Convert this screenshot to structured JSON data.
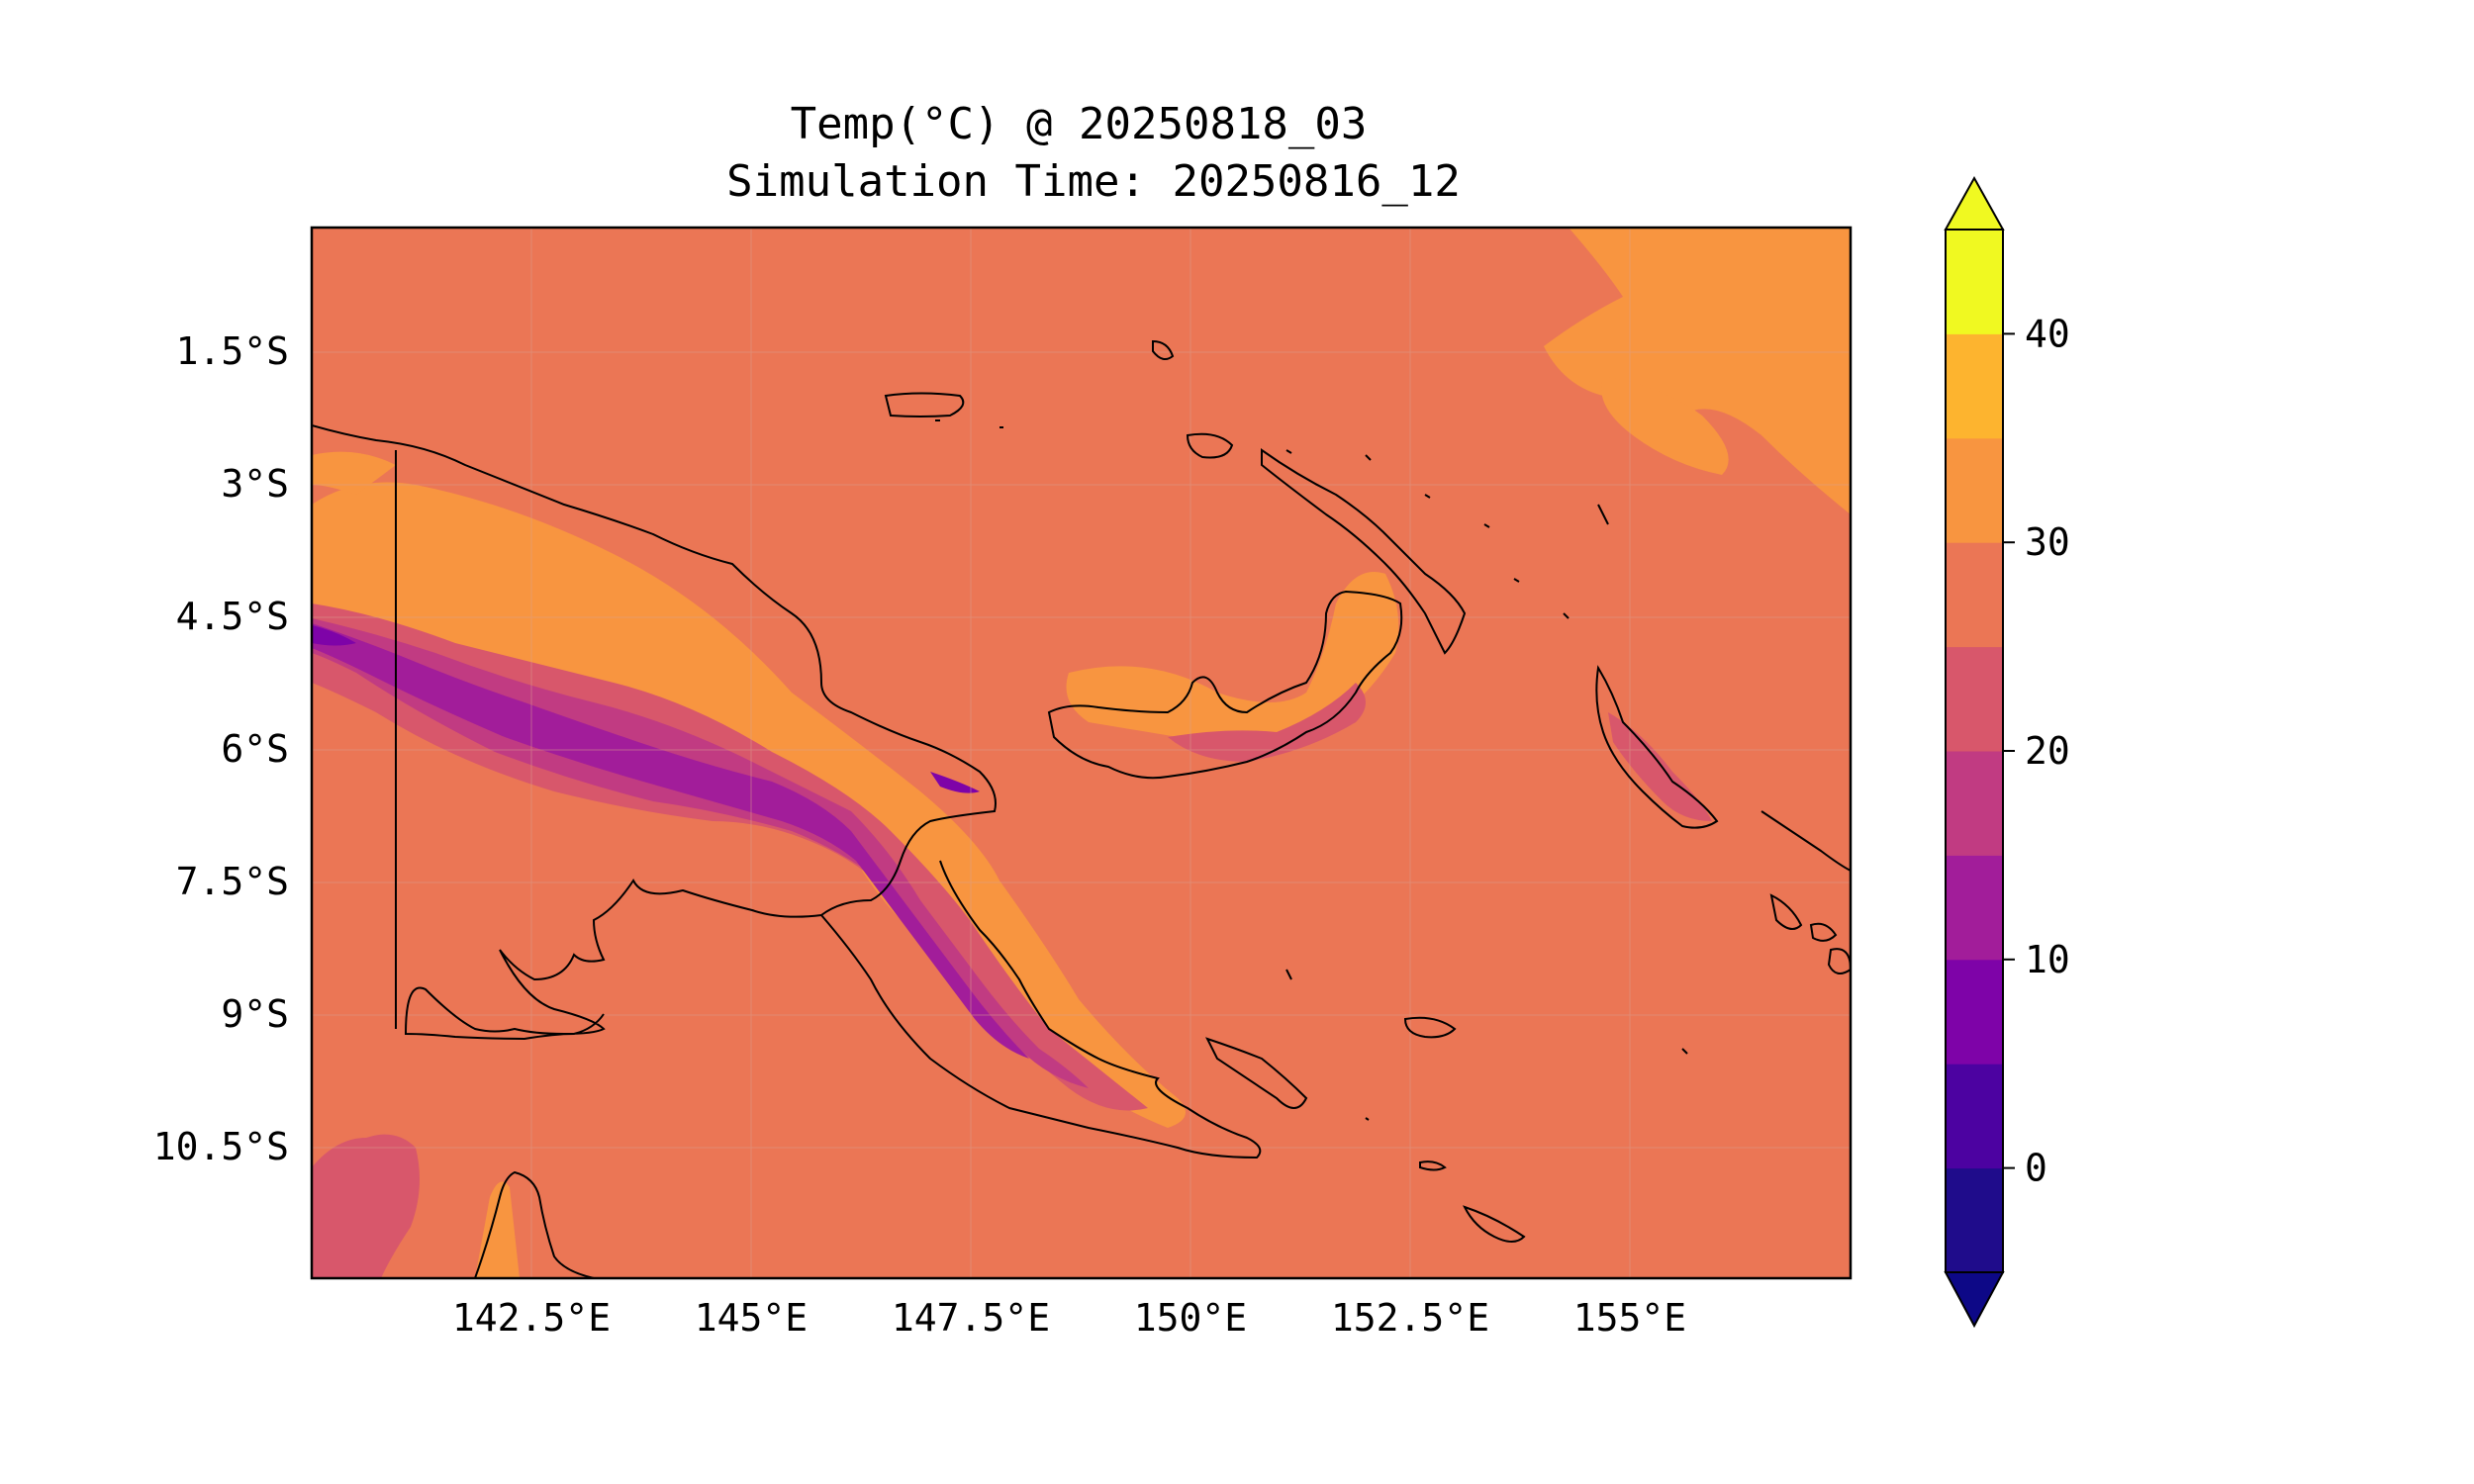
{
  "title": {
    "line1": "Temp(°C) @ 20250818_03",
    "line2": "Simulation Time: 20250816_12"
  },
  "map": {
    "lat_labels": [
      "1.5°S",
      "3°S",
      "4.5°S",
      "6°S",
      "7.5°S",
      "9°S",
      "10.5°S"
    ],
    "lon_labels": [
      "142.5°E",
      "145°E",
      "147.5°E",
      "150°E",
      "152.5°E",
      "155°E"
    ],
    "lon_range": [
      140.0,
      157.5
    ],
    "lat_range": [
      0.0,
      -12.0
    ],
    "grid": true
  },
  "colorbar": {
    "tick_labels": [
      "0",
      "10",
      "20",
      "30",
      "40"
    ],
    "ticks": [
      0,
      10,
      20,
      30,
      40
    ],
    "range": [
      -5,
      45
    ],
    "extend": "both",
    "levels": [
      -5,
      0,
      5,
      10,
      15,
      20,
      25,
      30,
      35,
      40,
      45
    ],
    "colors": [
      "#1f0c8b",
      "#4c02a1",
      "#7e03a8",
      "#a21d9a",
      "#c13b82",
      "#d8576b",
      "#eb7655",
      "#f89540",
      "#fdb42f",
      "#f0f921"
    ],
    "under_color": "#0d0887",
    "over_color": "#f0f921"
  },
  "colors": {
    "base": "#eb7655",
    "warm": "#f89540",
    "hot": "#fdb42f",
    "cool1": "#d8576b",
    "cool2": "#c13b82",
    "cold": "#a21d9a",
    "coldest": "#7e03a8",
    "coast": "#000000"
  }
}
